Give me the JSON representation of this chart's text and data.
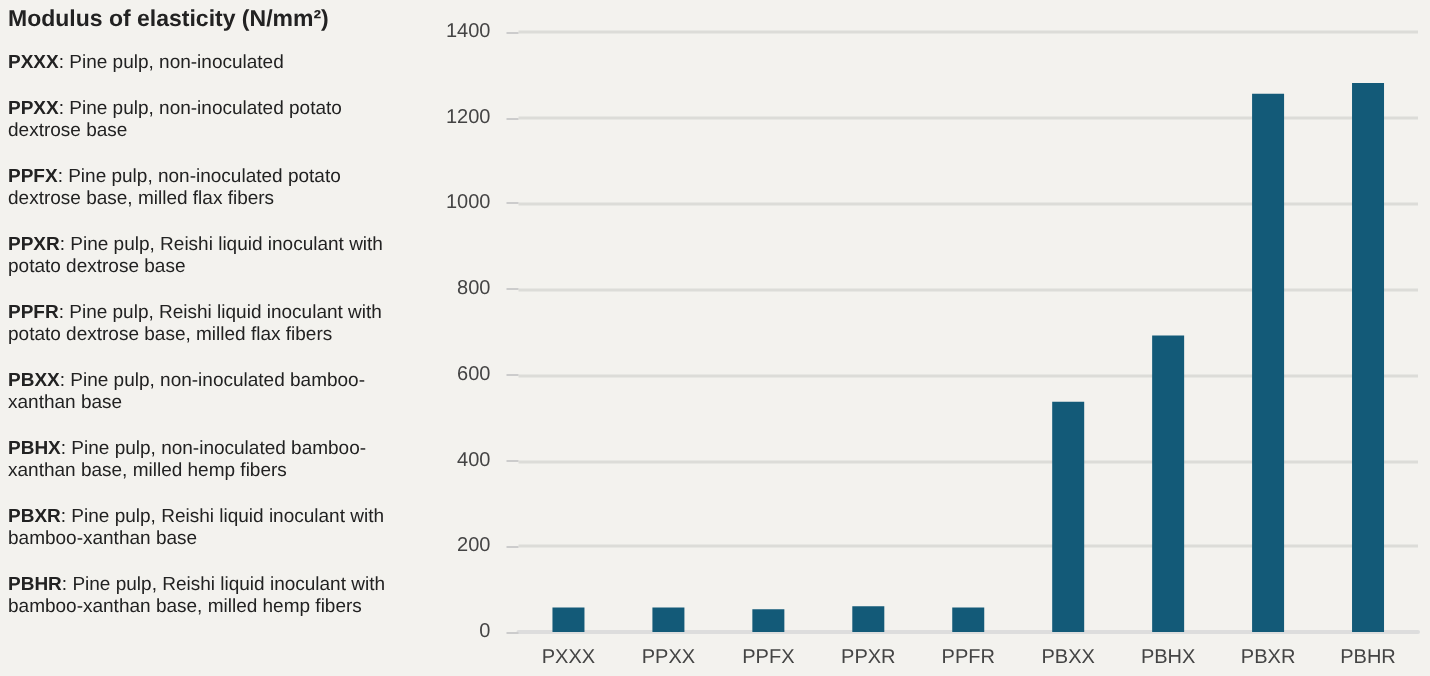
{
  "chart_data": {
    "type": "bar",
    "title": "Modulus of elasticity (N/mm²)",
    "categories": [
      "PXXX",
      "PPXX",
      "PPFX",
      "PPXR",
      "PPFR",
      "PBXX",
      "PBHX",
      "PBXR",
      "PBHR"
    ],
    "values": [
      57,
      57,
      53,
      60,
      57,
      537,
      692,
      1256,
      1281
    ],
    "color": "#135a78",
    "ylim": [
      0,
      1400
    ],
    "yticks": [
      0,
      200,
      400,
      600,
      800,
      1000,
      1200,
      1400
    ],
    "grid": "y",
    "annotations": [
      "PXXX: Pine pulp, non-inoculated",
      "PPXX: Pine pulp, non-inoculated potato dextrose base",
      "PPFX: Pine pulp, non-inoculated potato dextrose base, milled flax fibers",
      "PPXR: Pine pulp, Reishi liquid inoculant with potato dextrose base",
      "PPFR: Pine pulp, Reishi liquid inoculant with potato dextrose base, milled flax fibers",
      "PBXX: Pine pulp, non-inoculated bamboo-xanthan base",
      "PBHX: Pine pulp, non-inoculated bamboo-xanthan base, milled hemp fibers",
      "PBXR: Pine pulp, Reishi liquid inoculant with bamboo-xanthan base",
      "PBHR: Pine pulp, Reishi liquid inoculant with bamboo-xanthan base, milled hemp fibers"
    ]
  }
}
